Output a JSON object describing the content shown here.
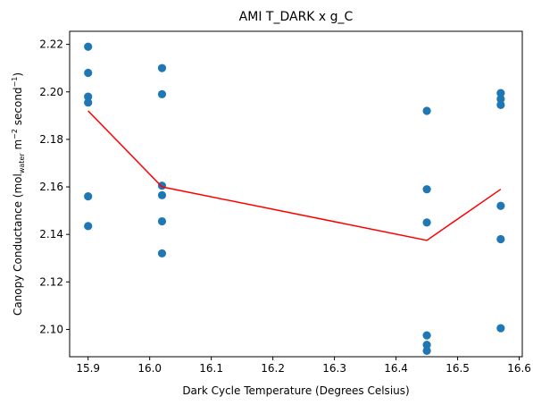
{
  "chart_data": {
    "type": "scatter",
    "title": "AMI T_DARK x g_C",
    "xlabel": "Dark Cycle Temperature (Degrees Celsius)",
    "ylabel": {
      "main": "Canopy Conductance (mol",
      "sub": "water",
      "unit_m": " m",
      "sup_m": "−2",
      "unit_s": " second",
      "sup_s": "−1",
      "close": ")"
    },
    "xlim": [
      15.87,
      16.605
    ],
    "ylim": [
      2.0885,
      2.2255
    ],
    "x_ticks": [
      15.9,
      16.0,
      16.1,
      16.2,
      16.3,
      16.4,
      16.5,
      16.6
    ],
    "x_tick_labels": [
      "15.9",
      "16.0",
      "16.1",
      "16.2",
      "16.3",
      "16.4",
      "16.5",
      "16.6"
    ],
    "y_ticks": [
      2.1,
      2.12,
      2.14,
      2.16,
      2.18,
      2.2,
      2.22
    ],
    "y_tick_labels": [
      "2.10",
      "2.12",
      "2.14",
      "2.16",
      "2.18",
      "2.20",
      "2.22"
    ],
    "grid": false,
    "series": [
      {
        "kind": "scatter",
        "color": "#1f77b4",
        "points": [
          [
            15.9,
            2.219
          ],
          [
            15.9,
            2.208
          ],
          [
            15.9,
            2.198
          ],
          [
            15.9,
            2.1955
          ],
          [
            15.9,
            2.156
          ],
          [
            15.9,
            2.1435
          ],
          [
            16.02,
            2.21
          ],
          [
            16.02,
            2.199
          ],
          [
            16.02,
            2.1605
          ],
          [
            16.02,
            2.1565
          ],
          [
            16.02,
            2.1455
          ],
          [
            16.02,
            2.132
          ],
          [
            16.45,
            2.192
          ],
          [
            16.45,
            2.159
          ],
          [
            16.45,
            2.145
          ],
          [
            16.45,
            2.0975
          ],
          [
            16.45,
            2.0935
          ],
          [
            16.45,
            2.091
          ],
          [
            16.57,
            2.1995
          ],
          [
            16.57,
            2.197
          ],
          [
            16.57,
            2.1945
          ],
          [
            16.57,
            2.152
          ],
          [
            16.57,
            2.138
          ],
          [
            16.57,
            2.1005
          ]
        ]
      },
      {
        "kind": "line",
        "color": "#ff0000",
        "points": [
          [
            15.9,
            2.192
          ],
          [
            16.02,
            2.16
          ],
          [
            16.45,
            2.1375
          ],
          [
            16.57,
            2.159
          ]
        ]
      }
    ]
  }
}
